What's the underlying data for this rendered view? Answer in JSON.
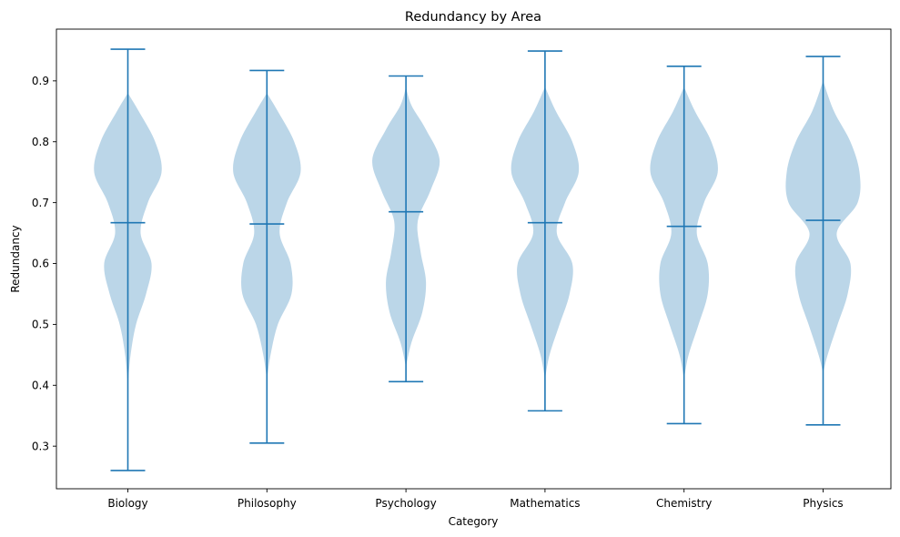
{
  "chart_data": {
    "type": "violin",
    "title": "Redundancy by Area",
    "xlabel": "Category",
    "ylabel": "Redundancy",
    "categories": [
      "Biology",
      "Philosophy",
      "Psychology",
      "Mathematics",
      "Chemistry",
      "Physics"
    ],
    "ylim": [
      0.23,
      0.985
    ],
    "yticks": [
      0.3,
      0.4,
      0.5,
      0.6,
      0.7,
      0.8,
      0.9
    ],
    "ytick_labels": [
      "0.3",
      "0.4",
      "0.5",
      "0.6",
      "0.7",
      "0.8",
      "0.9"
    ],
    "grid": false,
    "colors": {
      "body": "#1f77b4",
      "line": "#1f77b4"
    },
    "body_alpha": 0.3,
    "violins": [
      {
        "category": "Biology",
        "min": 0.26,
        "max": 0.952,
        "median": 0.667,
        "density": [
          [
            0.4,
            0.0
          ],
          [
            0.45,
            0.03
          ],
          [
            0.5,
            0.09
          ],
          [
            0.55,
            0.2
          ],
          [
            0.6,
            0.26
          ],
          [
            0.65,
            0.14
          ],
          [
            0.7,
            0.22
          ],
          [
            0.75,
            0.37
          ],
          [
            0.8,
            0.3
          ],
          [
            0.85,
            0.12
          ],
          [
            0.88,
            0.0
          ]
        ]
      },
      {
        "category": "Philosophy",
        "min": 0.305,
        "max": 0.917,
        "median": 0.665,
        "density": [
          [
            0.41,
            0.0
          ],
          [
            0.45,
            0.04
          ],
          [
            0.5,
            0.12
          ],
          [
            0.55,
            0.27
          ],
          [
            0.6,
            0.26
          ],
          [
            0.65,
            0.14
          ],
          [
            0.7,
            0.22
          ],
          [
            0.75,
            0.37
          ],
          [
            0.8,
            0.3
          ],
          [
            0.85,
            0.12
          ],
          [
            0.88,
            0.0
          ]
        ]
      },
      {
        "category": "Psychology",
        "min": 0.406,
        "max": 0.908,
        "median": 0.685,
        "density": [
          [
            0.43,
            0.0
          ],
          [
            0.47,
            0.06
          ],
          [
            0.52,
            0.18
          ],
          [
            0.57,
            0.22
          ],
          [
            0.62,
            0.16
          ],
          [
            0.67,
            0.13
          ],
          [
            0.72,
            0.27
          ],
          [
            0.77,
            0.37
          ],
          [
            0.82,
            0.22
          ],
          [
            0.86,
            0.06
          ],
          [
            0.89,
            0.0
          ]
        ]
      },
      {
        "category": "Mathematics",
        "min": 0.358,
        "max": 0.949,
        "median": 0.667,
        "density": [
          [
            0.41,
            0.0
          ],
          [
            0.45,
            0.05
          ],
          [
            0.5,
            0.16
          ],
          [
            0.55,
            0.27
          ],
          [
            0.6,
            0.3
          ],
          [
            0.65,
            0.13
          ],
          [
            0.7,
            0.22
          ],
          [
            0.75,
            0.37
          ],
          [
            0.8,
            0.3
          ],
          [
            0.85,
            0.12
          ],
          [
            0.89,
            0.0
          ]
        ]
      },
      {
        "category": "Chemistry",
        "min": 0.337,
        "max": 0.924,
        "median": 0.661,
        "density": [
          [
            0.41,
            0.0
          ],
          [
            0.45,
            0.05
          ],
          [
            0.5,
            0.16
          ],
          [
            0.55,
            0.26
          ],
          [
            0.6,
            0.26
          ],
          [
            0.65,
            0.14
          ],
          [
            0.7,
            0.22
          ],
          [
            0.75,
            0.37
          ],
          [
            0.8,
            0.3
          ],
          [
            0.85,
            0.12
          ],
          [
            0.89,
            0.0
          ]
        ]
      },
      {
        "category": "Physics",
        "min": 0.335,
        "max": 0.94,
        "median": 0.671,
        "density": [
          [
            0.42,
            0.0
          ],
          [
            0.45,
            0.05
          ],
          [
            0.5,
            0.16
          ],
          [
            0.55,
            0.27
          ],
          [
            0.6,
            0.3
          ],
          [
            0.65,
            0.15
          ],
          [
            0.7,
            0.38
          ],
          [
            0.75,
            0.4
          ],
          [
            0.8,
            0.3
          ],
          [
            0.85,
            0.12
          ],
          [
            0.9,
            0.0
          ]
        ]
      }
    ]
  }
}
